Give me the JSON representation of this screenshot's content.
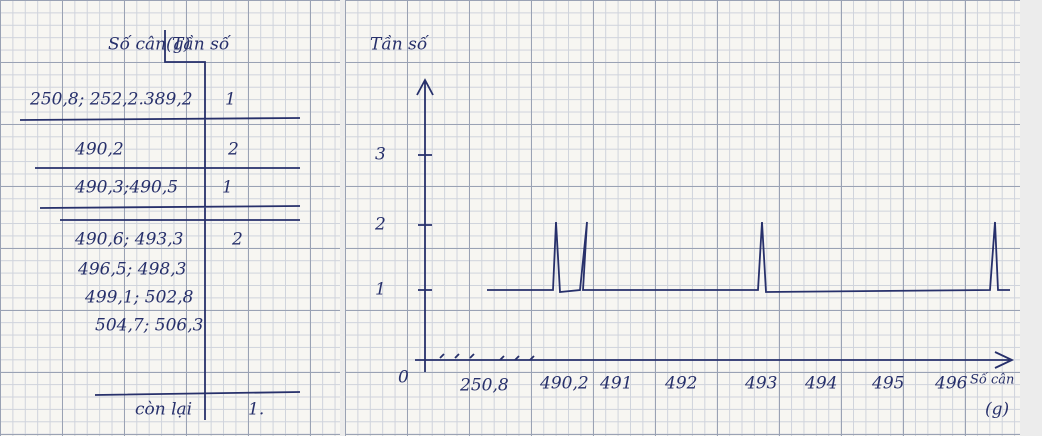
{
  "table": {
    "header": [
      "Số cân(g)",
      "Tần số"
    ],
    "rows": [
      [
        "250,8; 252,2.389,2",
        "1"
      ],
      [
        "490,2",
        "2"
      ],
      [
        "490,3;490,5",
        "1"
      ],
      [
        "490,6; 493,3",
        "2"
      ],
      [
        "496,5; 498,3",
        ""
      ],
      [
        "499,1; 502,8",
        ""
      ],
      [
        "504,7; 506,3",
        ""
      ],
      [
        "còn lại",
        "1."
      ]
    ]
  },
  "graph": {
    "y_label": "Tần số",
    "x_label": "Số cân",
    "x_unit": "(g)",
    "origin": "0",
    "y_ticks": [
      "1",
      "2",
      "3"
    ],
    "x_ticks": [
      "250,8",
      "490,2",
      "491",
      "492",
      "493",
      "494",
      "495",
      "496"
    ]
  }
}
